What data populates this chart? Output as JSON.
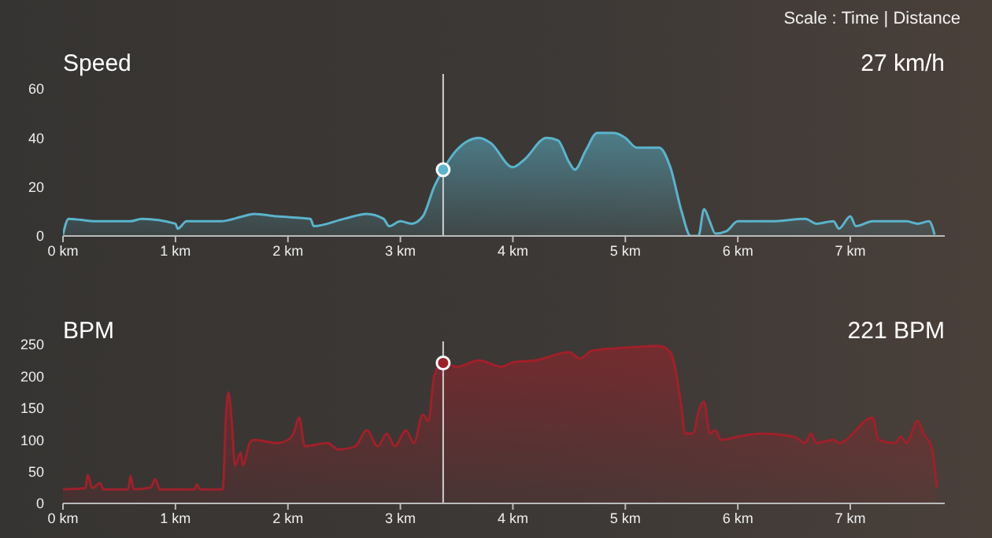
{
  "chart_data": [
    {
      "type": "area",
      "title": "Speed",
      "annotations": [
        "Scale : Time | Distance",
        "27 km/h"
      ],
      "xlim": [
        0,
        7.84
      ],
      "xticks": [
        {
          "value": 0,
          "label": "0 km"
        },
        {
          "value": 1,
          "label": "1 km"
        },
        {
          "value": 2,
          "label": "2 km"
        },
        {
          "value": 3,
          "label": "3 km"
        },
        {
          "value": 4,
          "label": "4 km"
        },
        {
          "value": 5,
          "label": "5 km"
        },
        {
          "value": 6,
          "label": "6 km"
        },
        {
          "value": 7,
          "label": "7 km"
        }
      ],
      "ylim": [
        0,
        66
      ],
      "yticks": [
        0,
        20,
        40,
        60
      ],
      "grid": false,
      "legend": false,
      "ref_lines": [
        {
          "axis": "x",
          "value": 3.38,
          "color": "#d0d0d0"
        }
      ],
      "x": [
        0,
        0.05,
        0.3,
        0.6,
        0.7,
        1.0,
        1.02,
        1.1,
        1.4,
        1.6,
        1.7,
        1.9,
        2.2,
        2.23,
        2.5,
        2.7,
        2.85,
        2.9,
        3.0,
        3.1,
        3.2,
        3.3,
        3.38,
        3.5,
        3.7,
        3.8,
        4.0,
        4.1,
        4.3,
        4.4,
        4.5,
        4.55,
        4.65,
        4.75,
        4.9,
        5.0,
        5.1,
        5.3,
        5.4,
        5.5,
        5.58,
        5.65,
        5.7,
        5.75,
        5.8,
        5.9,
        6.0,
        6.3,
        6.6,
        6.7,
        6.85,
        6.9,
        7.0,
        7.05,
        7.2,
        7.5,
        7.6,
        7.7,
        7.75
      ],
      "series": [
        {
          "color": "#5ab4cc",
          "values": [
            0.5,
            7,
            6,
            6,
            7,
            5,
            3,
            6,
            6,
            8,
            9,
            8,
            7,
            4,
            7,
            9,
            7,
            4,
            6,
            5,
            8,
            20,
            27,
            35,
            40,
            38,
            28,
            31,
            40,
            39,
            30,
            27,
            35,
            42,
            42,
            40,
            36,
            36,
            28,
            10,
            0,
            0,
            11,
            6,
            1,
            2,
            6,
            6,
            7,
            5,
            6,
            3,
            8,
            4,
            6,
            6,
            5,
            6,
            0.5
          ]
        },
        {
          "type": "scatter",
          "marker": "circle",
          "color": "#5ab4cc",
          "x": [
            3.38
          ],
          "values": [
            27
          ]
        }
      ]
    },
    {
      "type": "area",
      "title": "BPM",
      "annotations": [
        "221 BPM"
      ],
      "xlim": [
        0,
        7.84
      ],
      "xticks": [
        {
          "value": 0,
          "label": "0 km"
        },
        {
          "value": 1,
          "label": "1 km"
        },
        {
          "value": 2,
          "label": "2 km"
        },
        {
          "value": 3,
          "label": "3 km"
        },
        {
          "value": 4,
          "label": "4 km"
        },
        {
          "value": 5,
          "label": "5 km"
        },
        {
          "value": 6,
          "label": "6 km"
        },
        {
          "value": 7,
          "label": "7 km"
        }
      ],
      "ylim": [
        0,
        255
      ],
      "yticks": [
        0,
        50,
        100,
        150,
        200,
        250
      ],
      "grid": false,
      "legend": false,
      "ref_lines": [
        {
          "axis": "x",
          "value": 3.38,
          "color": "#d0d0d0"
        }
      ],
      "x": [
        0,
        0.2,
        0.22,
        0.26,
        0.33,
        0.36,
        0.58,
        0.6,
        0.63,
        0.78,
        0.82,
        0.86,
        1.17,
        1.19,
        1.22,
        1.42,
        1.45,
        1.47,
        1.5,
        1.53,
        1.58,
        1.6,
        1.66,
        1.7,
        1.9,
        2.0,
        2.05,
        2.1,
        2.15,
        2.35,
        2.45,
        2.6,
        2.7,
        2.8,
        2.88,
        2.95,
        3.05,
        3.12,
        3.2,
        3.25,
        3.3,
        3.38,
        3.5,
        3.7,
        3.9,
        4.0,
        4.2,
        4.5,
        4.6,
        4.7,
        5.0,
        5.3,
        5.4,
        5.5,
        5.53,
        5.6,
        5.66,
        5.7,
        5.75,
        5.8,
        5.85,
        6.0,
        6.2,
        6.5,
        6.6,
        6.65,
        6.7,
        6.85,
        6.9,
        7.2,
        7.25,
        7.4,
        7.45,
        7.5,
        7.6,
        7.65,
        7.72,
        7.77
      ],
      "series": [
        {
          "color": "#a0202a",
          "values": [
            22,
            24,
            45,
            24,
            32,
            22,
            22,
            43,
            22,
            25,
            38,
            22,
            22,
            30,
            22,
            22,
            140,
            175,
            130,
            60,
            80,
            60,
            95,
            100,
            95,
            100,
            110,
            135,
            90,
            95,
            85,
            90,
            115,
            90,
            110,
            90,
            115,
            95,
            140,
            130,
            200,
            221,
            215,
            225,
            215,
            222,
            225,
            238,
            228,
            240,
            245,
            248,
            238,
            150,
            110,
            110,
            150,
            160,
            110,
            115,
            100,
            105,
            110,
            105,
            95,
            110,
            95,
            100,
            95,
            135,
            100,
            95,
            105,
            95,
            130,
            110,
            90,
            25
          ]
        },
        {
          "type": "scatter",
          "marker": "circle",
          "color": "#a0202a",
          "x": [
            3.38
          ],
          "values": [
            221
          ]
        }
      ]
    }
  ]
}
